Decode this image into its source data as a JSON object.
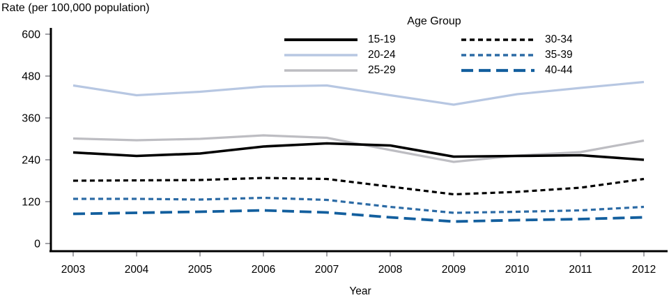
{
  "page": {
    "title": "Rate (per 100,000 population)",
    "x_axis_title": "Year"
  },
  "chart_data": {
    "type": "line",
    "title": "Rate (per 100,000 population)",
    "ylabel": "Rate (per 100,000 population)",
    "xlabel": "Year",
    "legend_title": "Age Group",
    "legend_position": "top-center-two-columns",
    "grid": false,
    "x": [
      2003,
      2004,
      2005,
      2006,
      2007,
      2008,
      2009,
      2010,
      2011,
      2012
    ],
    "y_ticks": [
      0,
      120,
      240,
      360,
      480,
      600
    ],
    "ylim": [
      0,
      620
    ],
    "series": [
      {
        "name": "15-19",
        "color": "#000000",
        "style": "solid",
        "width": 3.6,
        "dasharray": "",
        "values": [
          261,
          251,
          258,
          278,
          287,
          281,
          249,
          251,
          253,
          240
        ]
      },
      {
        "name": "20-24",
        "color": "#b7c7e2",
        "style": "solid",
        "width": 3.2,
        "dasharray": "",
        "values": [
          453,
          425,
          435,
          450,
          453,
          425,
          398,
          428,
          446,
          463
        ]
      },
      {
        "name": "25-29",
        "color": "#bdbdc2",
        "style": "solid",
        "width": 3.2,
        "dasharray": "",
        "values": [
          301,
          296,
          300,
          310,
          303,
          268,
          234,
          252,
          262,
          295
        ]
      },
      {
        "name": "30-34",
        "color": "#000000",
        "style": "dash",
        "width": 3.2,
        "dasharray": "7 5",
        "values": [
          180,
          181,
          182,
          188,
          185,
          163,
          141,
          148,
          160,
          185
        ]
      },
      {
        "name": "35-39",
        "color": "#2c6ba5",
        "style": "dash",
        "width": 3.2,
        "dasharray": "7 5",
        "values": [
          128,
          128,
          126,
          131,
          125,
          105,
          88,
          91,
          95,
          105
        ]
      },
      {
        "name": "40-44",
        "color": "#135f9e",
        "style": "long-dash",
        "width": 3.8,
        "dasharray": "17 8",
        "values": [
          85,
          88,
          91,
          95,
          89,
          75,
          63,
          67,
          70,
          75
        ]
      }
    ]
  }
}
